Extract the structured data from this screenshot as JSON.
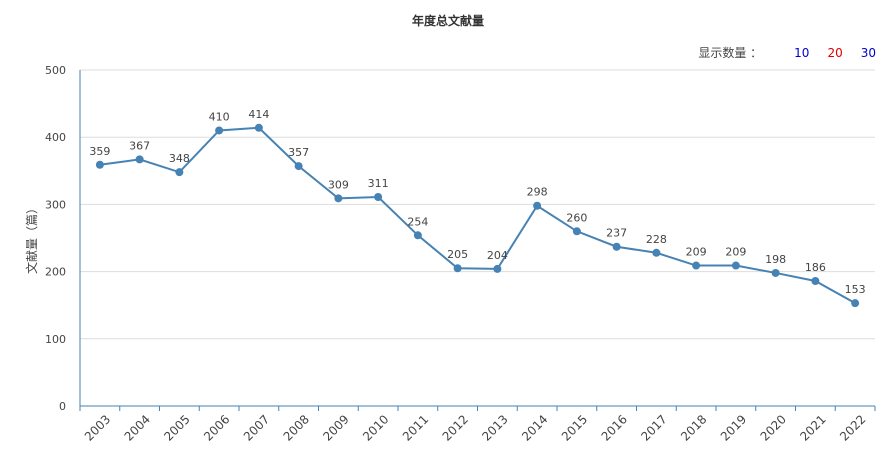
{
  "header": {
    "title": "年度总文献量",
    "count_label": "显示数量 ：",
    "count_options": [
      {
        "label": "10",
        "color": "#0000cc"
      },
      {
        "label": "20",
        "color": "#dd0000"
      },
      {
        "label": "30",
        "color": "#0000cc"
      }
    ]
  },
  "colors": {
    "line": "#4682b4",
    "axis": "#4682b4",
    "grid": "#dddddd",
    "text": "#444444"
  },
  "chart_data": {
    "type": "line",
    "title": "年度总文献量",
    "xlabel": "",
    "ylabel": "文献量（篇）",
    "ylim": [
      0,
      500
    ],
    "yticks": [
      0,
      100,
      200,
      300,
      400,
      500
    ],
    "grid": true,
    "categories": [
      "2003",
      "2004",
      "2005",
      "2006",
      "2007",
      "2008",
      "2009",
      "2010",
      "2011",
      "2012",
      "2013",
      "2014",
      "2015",
      "2016",
      "2017",
      "2018",
      "2019",
      "2020",
      "2021",
      "2022"
    ],
    "series": [
      {
        "values": [
          359,
          367,
          348,
          410,
          414,
          357,
          309,
          311,
          254,
          205,
          204,
          298,
          260,
          237,
          228,
          209,
          209,
          198,
          186,
          153
        ]
      }
    ]
  }
}
